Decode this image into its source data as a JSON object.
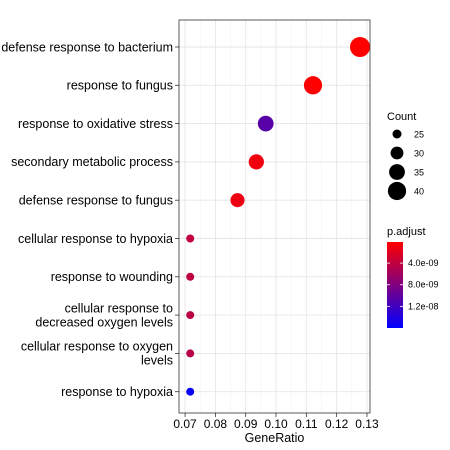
{
  "chart_data": {
    "type": "scatter",
    "title": "",
    "xlabel": "GeneRatio",
    "ylabel": "",
    "xlim": [
      0.068,
      0.131
    ],
    "x_ticks": [
      0.07,
      0.08,
      0.09,
      0.1,
      0.11,
      0.12,
      0.13
    ],
    "x_tick_labels": [
      "0.07",
      "0.08",
      "0.09",
      "0.10",
      "0.11",
      "0.12",
      "0.13"
    ],
    "grid": true,
    "categories": [
      "defense response to bacterium",
      "response to fungus",
      "response to oxidative stress",
      "secondary metabolic process",
      "defense response to fungus",
      "cellular response to hypoxia",
      "response to wounding",
      "cellular response to\ndecreased oxygen levels",
      "cellular response to oxygen\nlevels",
      "response to hypoxia"
    ],
    "points": [
      {
        "term": "defense response to bacterium",
        "gene_ratio": 0.1277,
        "count": 44,
        "p_adjust": 1e-10
      },
      {
        "term": "response to fungus",
        "gene_ratio": 0.1122,
        "count": 40,
        "p_adjust": 1.5e-10
      },
      {
        "term": "response to oxidative stress",
        "gene_ratio": 0.0966,
        "count": 35,
        "p_adjust": 1.05e-08
      },
      {
        "term": "secondary metabolic process",
        "gene_ratio": 0.0935,
        "count": 34,
        "p_adjust": 1e-09
      },
      {
        "term": "defense response to fungus",
        "gene_ratio": 0.0873,
        "count": 32,
        "p_adjust": 1.2e-09
      },
      {
        "term": "cellular response to hypoxia",
        "gene_ratio": 0.0717,
        "count": 24,
        "p_adjust": 4e-09
      },
      {
        "term": "response to wounding",
        "gene_ratio": 0.0717,
        "count": 24,
        "p_adjust": 4.2e-09
      },
      {
        "term": "cellular response to decreased oxygen levels",
        "gene_ratio": 0.0717,
        "count": 24,
        "p_adjust": 4.4e-09
      },
      {
        "term": "cellular response to oxygen levels",
        "gene_ratio": 0.0717,
        "count": 24,
        "p_adjust": 4.6e-09
      },
      {
        "term": "response to hypoxia",
        "gene_ratio": 0.0717,
        "count": 24,
        "p_adjust": 1.55e-08
      }
    ],
    "size_legend": {
      "title": "Count",
      "values": [
        25,
        30,
        35,
        40
      ],
      "labels": [
        "25",
        "30",
        "35",
        "40"
      ]
    },
    "color_legend": {
      "title": "p.adjust",
      "min": 1e-10,
      "max": 1.6e-08,
      "low_color": "#ff0000",
      "high_color": "#0000ff",
      "ticks": [
        4e-09,
        8e-09,
        1.2e-08
      ],
      "tick_labels": [
        "4.0e-09",
        "8.0e-09",
        "1.2e-08"
      ]
    },
    "legend_position": "right"
  }
}
